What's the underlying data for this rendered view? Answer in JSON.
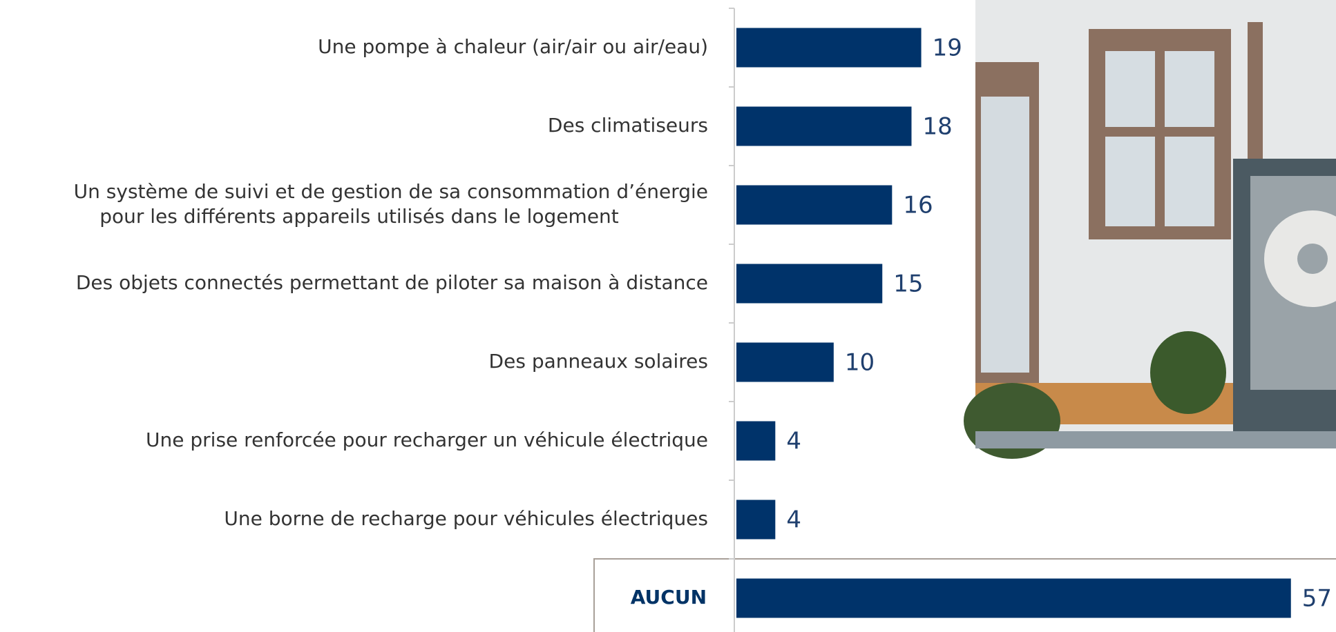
{
  "chart_data": {
    "type": "bar",
    "orientation": "horizontal",
    "categories": [
      [
        "Une pompe à chaleur (air/air ou air/eau)"
      ],
      [
        "Des climatiseurs"
      ],
      [
        "Un système de suivi et de gestion de sa consommation d’énergie",
        "pour les différents appareils utilisés dans le logement"
      ],
      [
        "Des objets connectés permettant de piloter sa maison à distance"
      ],
      [
        "Des panneaux solaires"
      ],
      [
        "Une prise renforcée pour recharger un véhicule électrique"
      ],
      [
        "Une borne de recharge pour véhicules électriques"
      ],
      [
        "AUCUN"
      ]
    ],
    "values": [
      19,
      18,
      16,
      15,
      10,
      4,
      4,
      57
    ],
    "color": "#00336a",
    "xlim": [
      0,
      60
    ]
  }
}
